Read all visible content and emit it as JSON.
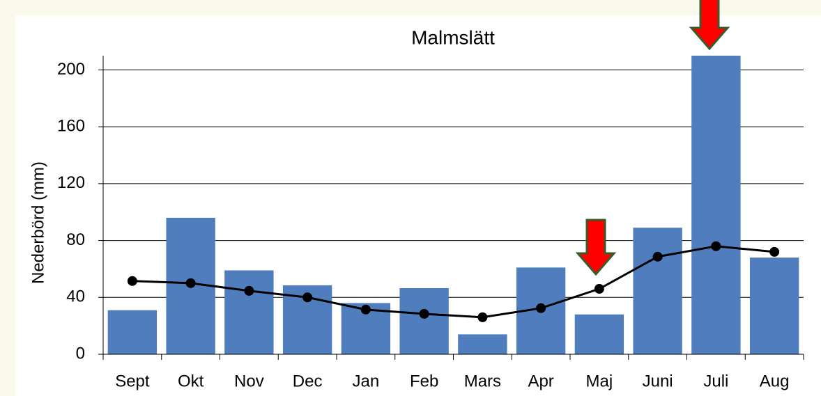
{
  "chart_data": {
    "type": "bar",
    "title": "Malmslätt",
    "y_label": "Nederbörd (mm)",
    "categories": [
      "Sept",
      "Okt",
      "Nov",
      "Dec",
      "Jan",
      "Feb",
      "Mars",
      "Apr",
      "Maj",
      "Juni",
      "Juli",
      "Aug"
    ],
    "series": [
      {
        "type": "bar",
        "color": "#4f7dbd",
        "values": [
          31,
          96,
          59,
          48.5,
          36,
          46.5,
          14,
          61,
          28,
          89,
          210,
          68
        ]
      },
      {
        "type": "line",
        "color": "#000000",
        "values": [
          51.5,
          50,
          44.6,
          40,
          31.4,
          28.4,
          26,
          32.4,
          46,
          68.6,
          76,
          72
        ]
      }
    ],
    "ylim": [
      0,
      210
    ],
    "yticks": [
      0,
      40,
      80,
      120,
      160,
      200
    ],
    "grid": true
  }
}
